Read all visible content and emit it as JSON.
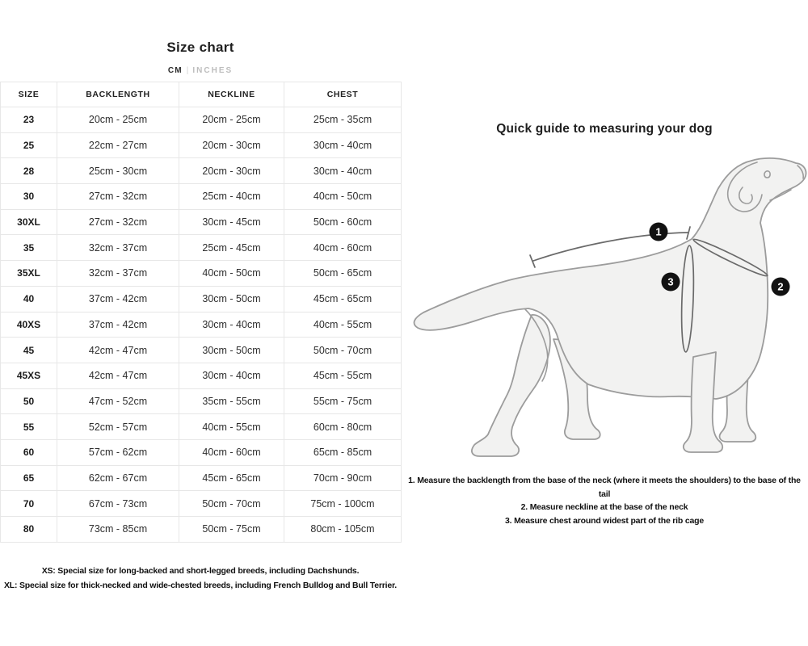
{
  "size_chart": {
    "title": "Size chart",
    "unit_cm": "CM",
    "unit_divider": "|",
    "unit_inches": "INCHES",
    "columns": [
      "SIZE",
      "BACKLENGTH",
      "NECKLINE",
      "CHEST"
    ],
    "rows": [
      [
        "23",
        "20cm - 25cm",
        "20cm - 25cm",
        "25cm - 35cm"
      ],
      [
        "25",
        "22cm - 27cm",
        "20cm - 30cm",
        "30cm - 40cm"
      ],
      [
        "28",
        "25cm - 30cm",
        "20cm - 30cm",
        "30cm - 40cm"
      ],
      [
        "30",
        "27cm - 32cm",
        "25cm - 40cm",
        "40cm - 50cm"
      ],
      [
        "30XL",
        "27cm - 32cm",
        "30cm - 45cm",
        "50cm - 60cm"
      ],
      [
        "35",
        "32cm - 37cm",
        "25cm - 45cm",
        "40cm - 60cm"
      ],
      [
        "35XL",
        "32cm - 37cm",
        "40cm - 50cm",
        "50cm - 65cm"
      ],
      [
        "40",
        "37cm - 42cm",
        "30cm - 50cm",
        "45cm - 65cm"
      ],
      [
        "40XS",
        "37cm - 42cm",
        "30cm - 40cm",
        "40cm - 55cm"
      ],
      [
        "45",
        "42cm - 47cm",
        "30cm - 50cm",
        "50cm - 70cm"
      ],
      [
        "45XS",
        "42cm - 47cm",
        "30cm - 40cm",
        "45cm - 55cm"
      ],
      [
        "50",
        "47cm - 52cm",
        "35cm - 55cm",
        "55cm - 75cm"
      ],
      [
        "55",
        "52cm - 57cm",
        "40cm - 55cm",
        "60cm - 80cm"
      ],
      [
        "60",
        "57cm - 62cm",
        "40cm - 60cm",
        "65cm - 85cm"
      ],
      [
        "65",
        "62cm - 67cm",
        "45cm - 65cm",
        "70cm - 90cm"
      ],
      [
        "70",
        "67cm - 73cm",
        "50cm - 70cm",
        "75cm - 100cm"
      ],
      [
        "80",
        "73cm - 85cm",
        "50cm - 75cm",
        "80cm - 105cm"
      ]
    ],
    "footnotes": [
      "XS: Special size for long-backed and short-legged breeds, including Dachshunds.",
      "XL: Special size for thick-necked and wide-chested breeds, including French Bulldog and Bull Terrier."
    ]
  },
  "measuring_guide": {
    "title": "Quick guide to measuring your dog",
    "markers": [
      "1",
      "2",
      "3"
    ],
    "instructions": [
      "1. Measure the backlength from the base of the neck (where it meets the shoulders) to the base of the tail",
      "2. Measure neckline at the base of the neck",
      "3. Measure chest around widest part of the rib cage"
    ]
  },
  "colors": {
    "text": "#1f1f1f",
    "muted": "#bdbdbd",
    "table_border": "#e7e7e7",
    "dog_outline": "#9c9c9c",
    "dog_fill": "#f2f2f1",
    "measure_line": "#6a6a6a",
    "marker_bg": "#121212",
    "marker_text": "#ffffff"
  }
}
